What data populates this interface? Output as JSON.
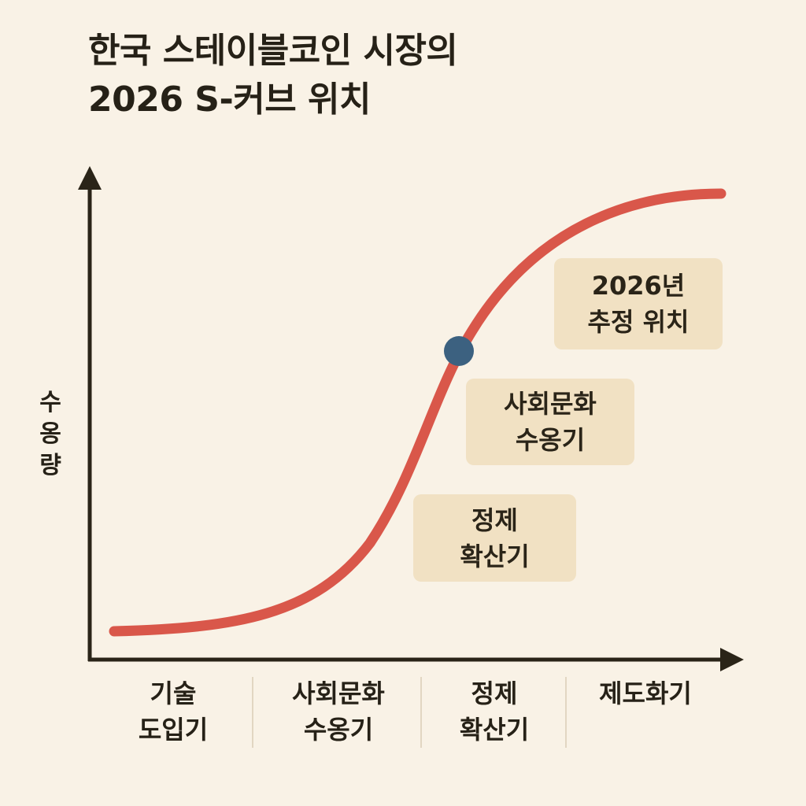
{
  "title": {
    "line1": "한국 스테이블코인 시장의",
    "line2": "2026 S-커브 위치"
  },
  "y_axis": {
    "label": [
      "수",
      "옹",
      "량"
    ]
  },
  "curve": {
    "shape": "S-curve (logistic)",
    "color": "#d9574a",
    "marker_color": "#3c6180",
    "marker_meaning": "2026년 추정 위치"
  },
  "annotations": {
    "estimate": [
      "2026년",
      "추정 위치"
    ],
    "social": [
      "사회문화",
      "수옹기"
    ],
    "regulation": [
      "정제",
      "확산기"
    ]
  },
  "stages": [
    {
      "lines": [
        "기술",
        "도입기"
      ]
    },
    {
      "lines": [
        "사회문화",
        "수옹기"
      ]
    },
    {
      "lines": [
        "정제",
        "확산기"
      ]
    },
    {
      "lines": [
        "제도화기"
      ]
    }
  ],
  "colors": {
    "background": "#f9f2e6",
    "axis": "#2a2418",
    "note_background": "#f1e1c3"
  }
}
